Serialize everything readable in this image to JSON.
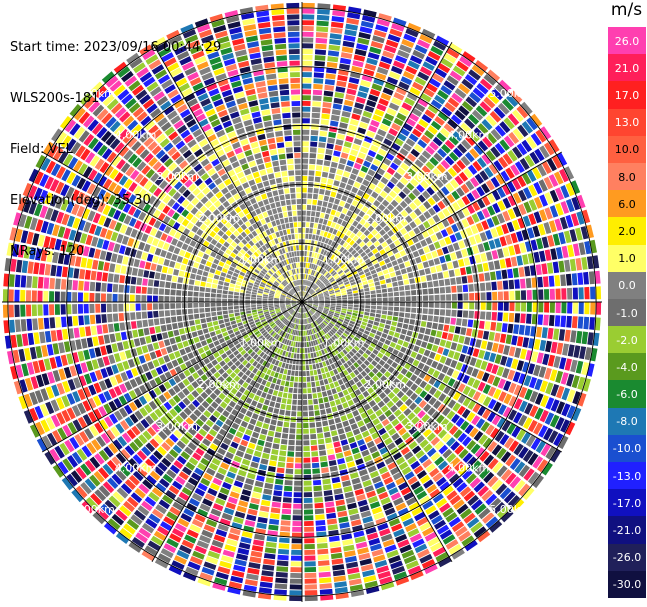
{
  "header": {
    "start_time": "Start time: 2023/09/16 00:44:29",
    "instrument": "WLS200s-181",
    "field": "Field: VEL",
    "elevation": "Elevation(deg): 35.30",
    "nrays": "NRays: 120"
  },
  "colorbar": {
    "unit": "m/s",
    "levels": [
      "26.0",
      "21.0",
      "17.0",
      "13.0",
      "10.0",
      "8.0",
      "6.0",
      "2.0",
      "1.0",
      "0.0",
      "-1.0",
      "-2.0",
      "-4.0",
      "-6.0",
      "-8.0",
      "-10.0",
      "-13.0",
      "-17.0",
      "-21.0",
      "-26.0",
      "-30.0"
    ],
    "colors": [
      "#ff3fb0",
      "#ff1f5a",
      "#ff2020",
      "#ff4530",
      "#ff6040",
      "#ff8060",
      "#ff9b20",
      "#ffee00",
      "#ffff66",
      "#808080",
      "#6e6e6e",
      "#9acd32",
      "#5a9a1e",
      "#1a8a30",
      "#1e78b4",
      "#1a4fd0",
      "#2020ff",
      "#1010c0",
      "#101080",
      "#20205a",
      "#101040"
    ]
  },
  "chart_data": {
    "type": "heatmap",
    "projection": "polar PPI",
    "field": "VEL",
    "nrays": 120,
    "range_rings_km": [
      1.0,
      2.0,
      3.0,
      4.0,
      5.0
    ],
    "ring_labels": [
      "1.00km",
      "2.00km",
      "3.00km",
      "4.00km",
      "5.00km"
    ],
    "max_range_km": 5.1,
    "pattern_summary": {
      "inner_north_sector": "positive 1 to 2 m/s (yellow)",
      "inner_south_sector": "negative -1 to -2 m/s (yellow-green)",
      "outer_annulus": "noisy values spanning -30 to 26 m/s"
    }
  }
}
